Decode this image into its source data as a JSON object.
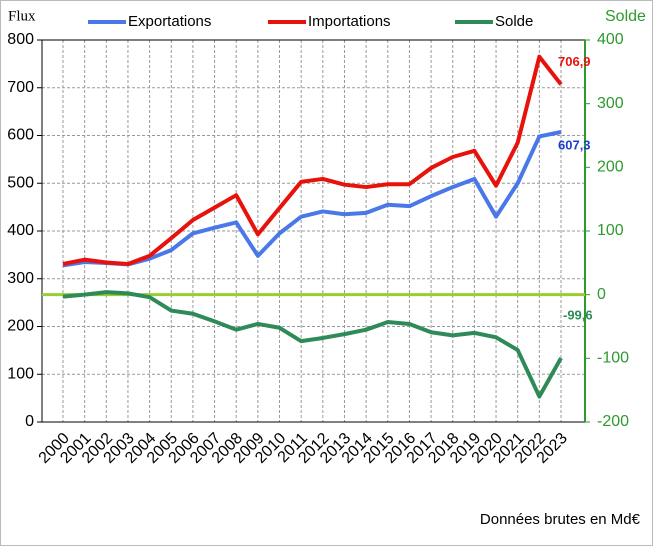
{
  "chart_data": {
    "type": "line",
    "y_label": "Flux",
    "y2_label": "Solde",
    "note": "Données brutes en Md€",
    "categories": [
      "2000",
      "2001",
      "2002",
      "2003",
      "2004",
      "2005",
      "2006",
      "2007",
      "2008",
      "2009",
      "2010",
      "2011",
      "2012",
      "2013",
      "2014",
      "2015",
      "2016",
      "2017",
      "2018",
      "2019",
      "2020",
      "2021",
      "2022",
      "2023"
    ],
    "series": [
      {
        "name": "Exportations",
        "color": "#4a78e8",
        "values": [
          328,
          335,
          333,
          330,
          342,
          360,
          395,
          407,
          418,
          348,
          395,
          430,
          441,
          435,
          438,
          455,
          452,
          473,
          492,
          509,
          430,
          500,
          598,
          607.3
        ],
        "value_labels": [
          null,
          null,
          null,
          null,
          null,
          null,
          null,
          null,
          null,
          null,
          null,
          null,
          null,
          null,
          null,
          null,
          null,
          null,
          null,
          null,
          null,
          null,
          null,
          "607,3"
        ],
        "label_color": "#1a3fd0"
      },
      {
        "name": "Importations",
        "color": "#e8120c",
        "values": [
          331,
          340,
          334,
          331,
          348,
          385,
          423,
          449,
          475,
          393,
          448,
          503,
          509,
          497,
          492,
          498,
          498,
          532,
          555,
          568,
          495,
          585,
          765,
          706.9
        ],
        "value_labels": [
          null,
          null,
          null,
          null,
          null,
          null,
          null,
          null,
          null,
          null,
          null,
          null,
          null,
          null,
          null,
          null,
          null,
          null,
          null,
          null,
          null,
          null,
          null,
          "706,9"
        ],
        "label_color": "#e8120c"
      },
      {
        "name": "Solde",
        "color": "#2e8b57",
        "axis": "y2",
        "values": [
          -3,
          0,
          4,
          2,
          -4,
          -25,
          -30,
          -42,
          -55,
          -46,
          -52,
          -73,
          -68,
          -62,
          -55,
          -43,
          -46,
          -59,
          -64,
          -60,
          -67,
          -87,
          -160,
          -99.6
        ],
        "value_labels": [
          null,
          null,
          null,
          null,
          null,
          null,
          null,
          null,
          null,
          null,
          null,
          null,
          null,
          null,
          null,
          null,
          null,
          null,
          null,
          null,
          null,
          null,
          null,
          "-99,6"
        ],
        "label_color": "#2e8b57"
      }
    ],
    "ylim": [
      0,
      800
    ],
    "yticks": [
      0,
      100,
      200,
      300,
      400,
      500,
      600,
      700,
      800
    ],
    "y2lim": [
      -200,
      400
    ],
    "y2ticks": [
      -200,
      -100,
      0,
      100,
      200,
      300,
      400
    ],
    "y2_color": "#2e9a2e",
    "zero_line_color": "#9acd32",
    "grid": true
  }
}
